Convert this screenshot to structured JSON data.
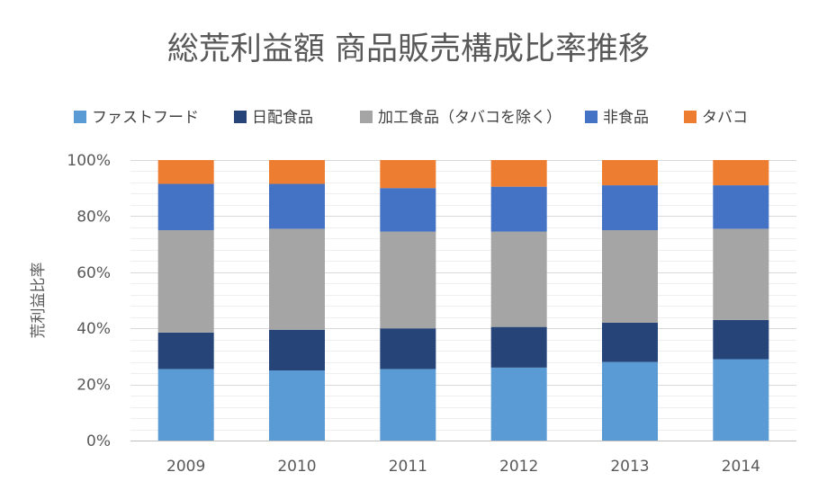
{
  "chart_data": {
    "type": "bar",
    "stacked": true,
    "title": "総荒利益額 商品販売構成比率推移",
    "ylabel": "荒利益比率",
    "xlabel": "",
    "ylim": [
      0,
      100
    ],
    "yticks": [
      0,
      20,
      40,
      60,
      80,
      100
    ],
    "ytick_labels": [
      "0%",
      "20%",
      "40%",
      "60%",
      "80%",
      "100%"
    ],
    "gridlines": true,
    "legend_position": "top",
    "categories": [
      "2009",
      "2010",
      "2011",
      "2012",
      "2013",
      "2014"
    ],
    "series": [
      {
        "name": "ファストフード",
        "color": "#5b9bd5",
        "values": [
          25.5,
          25.0,
          25.5,
          26.0,
          28.0,
          29.0
        ]
      },
      {
        "name": "日配食品",
        "color": "#264478",
        "values": [
          13.0,
          14.5,
          14.5,
          14.5,
          14.0,
          14.0
        ]
      },
      {
        "name": "加工食品（タバコを除く）",
        "color": "#a5a5a5",
        "values": [
          36.5,
          36.0,
          34.5,
          34.0,
          33.0,
          32.5
        ]
      },
      {
        "name": "非食品",
        "color": "#4472c4",
        "values": [
          16.5,
          16.0,
          15.5,
          16.0,
          16.0,
          15.5
        ]
      },
      {
        "name": "タバコ",
        "color": "#ed7d31",
        "values": [
          8.5,
          8.5,
          10.0,
          9.5,
          9.0,
          9.0
        ]
      }
    ]
  }
}
